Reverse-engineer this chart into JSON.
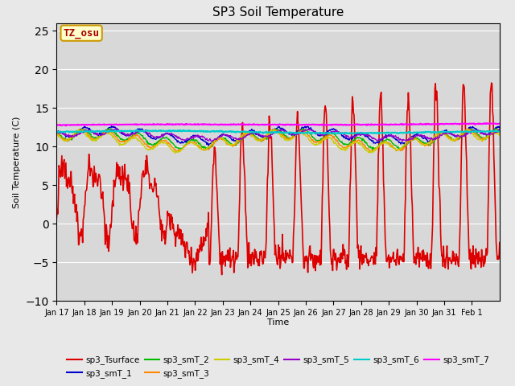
{
  "title": "SP3 Soil Temperature",
  "ylabel": "Soil Temperature (C)",
  "xlabel": "Time",
  "annotation": "TZ_osu",
  "annotation_box_color": "#ffffcc",
  "annotation_text_color": "#aa0000",
  "annotation_border_color": "#cc9900",
  "background_color": "#e8e8e8",
  "plot_bg_color": "#d8d8d8",
  "ylim": [
    -10,
    26
  ],
  "yticks": [
    -10,
    -5,
    0,
    5,
    10,
    15,
    20,
    25
  ],
  "x_tick_labels": [
    "Jan 17",
    "Jan 18",
    "Jan 19",
    "Jan 20",
    "Jan 21",
    "Jan 22",
    "Jan 23",
    "Jan 24",
    "Jan 25",
    "Jan 26",
    "Jan 27",
    "Jan 28",
    "Jan 29",
    "Jan 30",
    "Jan 31",
    "Feb 1"
  ],
  "series": [
    {
      "name": "sp3_Tsurface",
      "color": "#dd0000",
      "lw": 1.2
    },
    {
      "name": "sp3_smT_1",
      "color": "#0000cc",
      "lw": 1.0
    },
    {
      "name": "sp3_smT_2",
      "color": "#00bb00",
      "lw": 1.0
    },
    {
      "name": "sp3_smT_3",
      "color": "#ff8800",
      "lw": 1.0
    },
    {
      "name": "sp3_smT_4",
      "color": "#cccc00",
      "lw": 1.0
    },
    {
      "name": "sp3_smT_5",
      "color": "#9900cc",
      "lw": 1.0
    },
    {
      "name": "sp3_smT_6",
      "color": "#00cccc",
      "lw": 1.5
    },
    {
      "name": "sp3_smT_7",
      "color": "#ff00ff",
      "lw": 1.5
    }
  ]
}
